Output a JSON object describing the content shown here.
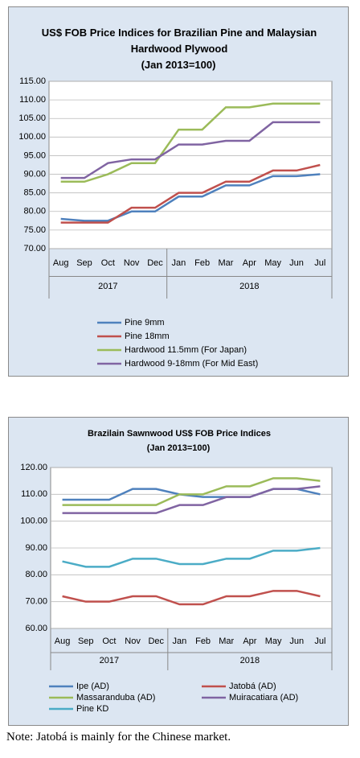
{
  "chart_data": [
    {
      "type": "line",
      "title": "US$ FOB Price Indices for Brazilian Pine and Malaysian Hardwood Plywood",
      "subtitle": "(Jan 2013=100)",
      "categories": [
        "Aug",
        "Sep",
        "Oct",
        "Nov",
        "Dec",
        "Jan",
        "Feb",
        "Mar",
        "Apr",
        "May",
        "Jun",
        "Jul"
      ],
      "x_groups": [
        "2017",
        "2018"
      ],
      "ylim": [
        70,
        115
      ],
      "yticks": [
        {
          "value": 70,
          "label": "70.00"
        },
        {
          "value": 75,
          "label": "75.00"
        },
        {
          "value": 80,
          "label": "80.00"
        },
        {
          "value": 85,
          "label": "85.00"
        },
        {
          "value": 90,
          "label": "90.00"
        },
        {
          "value": 95,
          "label": "95.00"
        },
        {
          "value": 100,
          "label": "100.00"
        },
        {
          "value": 105,
          "label": "105.00"
        },
        {
          "value": 110,
          "label": "110.00"
        },
        {
          "value": 115,
          "label": "115.00"
        }
      ],
      "grid": true,
      "legend_columns": 1,
      "series": [
        {
          "name": "Pine 9mm",
          "color": "#4f81bd",
          "values": [
            78,
            77.5,
            77.5,
            80,
            80,
            84,
            84,
            87,
            87,
            89.5,
            89.5,
            90
          ]
        },
        {
          "name": "Pine 18mm",
          "color": "#c0504d",
          "values": [
            77,
            77,
            77,
            81,
            81,
            85,
            85,
            88,
            88,
            91,
            91,
            92.5
          ]
        },
        {
          "name": "Hardwood 11.5mm (For Japan)",
          "color": "#9bbb59",
          "values": [
            88,
            88,
            90,
            93,
            93,
            102,
            102,
            108,
            108,
            109,
            109,
            109
          ]
        },
        {
          "name": "Hardwood 9-18mm (For Mid East)",
          "color": "#8064a2",
          "values": [
            89,
            89,
            93,
            94,
            94,
            98,
            98,
            99,
            99,
            104,
            104,
            104
          ]
        }
      ]
    },
    {
      "type": "line",
      "title": "Brazilain Sawnwood US$ FOB Price Indices",
      "subtitle": "(Jan 2013=100)",
      "categories": [
        "Aug",
        "Sep",
        "Oct",
        "Nov",
        "Dec",
        "Jan",
        "Feb",
        "Mar",
        "Apr",
        "May",
        "Jun",
        "Jul"
      ],
      "x_groups": [
        "2017",
        "2018"
      ],
      "ylim": [
        60,
        120
      ],
      "yticks": [
        {
          "value": 60,
          "label": "60.00"
        },
        {
          "value": 70,
          "label": "70.00"
        },
        {
          "value": 80,
          "label": "80.00"
        },
        {
          "value": 90,
          "label": "90.00"
        },
        {
          "value": 100,
          "label": "100.00"
        },
        {
          "value": 110,
          "label": "110.00"
        },
        {
          "value": 120,
          "label": "120.00"
        }
      ],
      "grid": true,
      "legend_columns": 2,
      "series": [
        {
          "name": "Ipe (AD)",
          "color": "#4f81bd",
          "values": [
            108,
            108,
            108,
            112,
            112,
            110,
            109,
            109,
            109,
            112,
            112,
            110
          ]
        },
        {
          "name": "Jatobá (AD)",
          "color": "#c0504d",
          "values": [
            72,
            70,
            70,
            72,
            72,
            69,
            69,
            72,
            72,
            74,
            74,
            72
          ]
        },
        {
          "name": "Massaranduba (AD)",
          "color": "#9bbb59",
          "values": [
            106,
            106,
            106,
            106,
            106,
            110,
            110,
            113,
            113,
            116,
            116,
            115
          ]
        },
        {
          "name": "Muiracatiara (AD)",
          "color": "#8064a2",
          "values": [
            103,
            103,
            103,
            103,
            103,
            106,
            106,
            109,
            109,
            112,
            112,
            113
          ]
        },
        {
          "name": "Pine KD",
          "color": "#4bacc6",
          "values": [
            85,
            83,
            83,
            86,
            86,
            84,
            84,
            86,
            86,
            89,
            89,
            90
          ]
        }
      ]
    }
  ],
  "note": "Note: Jatobá is mainly for the Chinese market."
}
